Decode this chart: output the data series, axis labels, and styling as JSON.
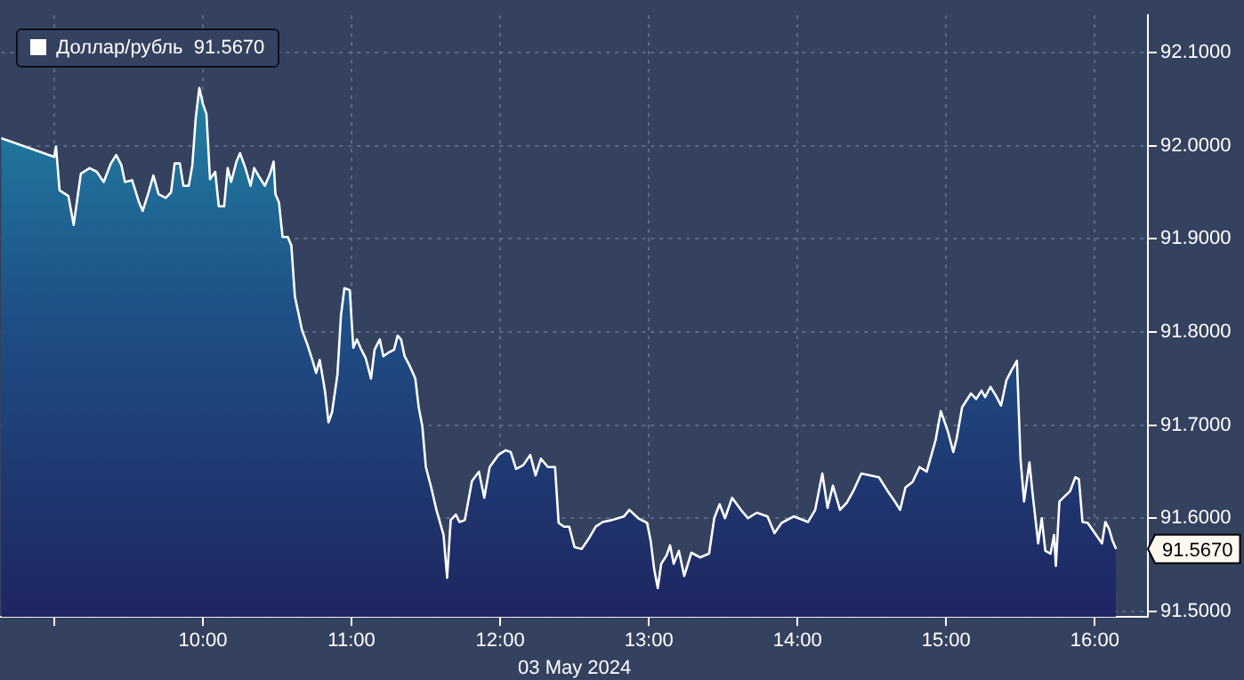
{
  "chart_data": {
    "type": "area",
    "xlabel": "03 May 2024",
    "x": [
      8.643,
      9.0,
      9.012,
      9.036,
      9.095,
      9.131,
      9.179,
      9.238,
      9.286,
      9.333,
      9.381,
      9.417,
      9.452,
      9.476,
      9.524,
      9.571,
      9.595,
      9.631,
      9.667,
      9.702,
      9.75,
      9.786,
      9.81,
      9.845,
      9.869,
      9.905,
      9.929,
      9.952,
      9.976,
      10.0,
      10.024,
      10.048,
      10.083,
      10.107,
      10.143,
      10.167,
      10.19,
      10.226,
      10.25,
      10.286,
      10.321,
      10.345,
      10.381,
      10.417,
      10.452,
      10.476,
      10.488,
      10.512,
      10.536,
      10.571,
      10.595,
      10.619,
      10.643,
      10.667,
      10.702,
      10.738,
      10.762,
      10.786,
      10.821,
      10.845,
      10.869,
      10.905,
      10.929,
      10.952,
      10.988,
      11.012,
      11.036,
      11.06,
      11.095,
      11.131,
      11.155,
      11.19,
      11.214,
      11.25,
      11.286,
      11.31,
      11.333,
      11.357,
      11.393,
      11.429,
      11.452,
      11.476,
      11.5,
      11.536,
      11.571,
      11.619,
      11.643,
      11.667,
      11.702,
      11.726,
      11.762,
      11.81,
      11.857,
      11.893,
      11.929,
      11.988,
      12.036,
      12.071,
      12.107,
      12.155,
      12.202,
      12.238,
      12.274,
      12.321,
      12.369,
      12.393,
      12.429,
      12.464,
      12.5,
      12.548,
      12.595,
      12.643,
      12.69,
      12.75,
      12.833,
      12.869,
      12.929,
      12.988,
      13.012,
      13.036,
      13.06,
      13.083,
      13.119,
      13.143,
      13.167,
      13.202,
      13.238,
      13.286,
      13.345,
      13.405,
      13.44,
      13.476,
      13.512,
      13.56,
      13.619,
      13.667,
      13.726,
      13.798,
      13.845,
      13.893,
      13.976,
      14.071,
      14.119,
      14.167,
      14.202,
      14.238,
      14.286,
      14.333,
      14.381,
      14.429,
      14.548,
      14.607,
      14.655,
      14.69,
      14.726,
      14.774,
      14.821,
      14.869,
      14.929,
      14.964,
      15.012,
      15.048,
      15.071,
      15.107,
      15.167,
      15.202,
      15.238,
      15.262,
      15.298,
      15.333,
      15.369,
      15.405,
      15.44,
      15.476,
      15.5,
      15.524,
      15.56,
      15.583,
      15.619,
      15.643,
      15.667,
      15.702,
      15.726,
      15.738,
      15.762,
      15.833,
      15.869,
      15.893,
      15.917,
      15.952,
      16.0,
      16.048,
      16.071,
      16.095,
      16.119,
      16.143
    ],
    "series": [
      {
        "name": "Доллар/рубль  91.5670",
        "color": "#ffffff",
        "values": [
          92.008,
          91.988,
          91.999,
          91.952,
          91.946,
          91.915,
          91.97,
          91.976,
          91.972,
          91.961,
          91.981,
          91.99,
          91.979,
          91.961,
          91.963,
          91.939,
          91.93,
          91.948,
          91.968,
          91.948,
          91.944,
          91.95,
          91.981,
          91.981,
          91.957,
          91.957,
          91.979,
          92.03,
          92.062,
          92.045,
          92.034,
          91.964,
          91.972,
          91.935,
          91.935,
          91.976,
          91.961,
          91.983,
          91.992,
          91.976,
          91.957,
          91.976,
          91.966,
          91.957,
          91.97,
          91.983,
          91.948,
          91.939,
          91.902,
          91.902,
          91.893,
          91.838,
          91.82,
          91.802,
          91.787,
          91.769,
          91.756,
          91.77,
          91.737,
          91.703,
          91.714,
          91.754,
          91.818,
          91.847,
          91.845,
          91.783,
          91.792,
          91.783,
          91.772,
          91.75,
          91.781,
          91.792,
          91.774,
          91.778,
          91.781,
          91.796,
          91.792,
          91.774,
          91.763,
          91.75,
          91.719,
          91.699,
          91.655,
          91.633,
          91.609,
          91.582,
          91.536,
          91.598,
          91.604,
          91.596,
          91.598,
          91.64,
          91.65,
          91.622,
          91.655,
          91.668,
          91.673,
          91.671,
          91.653,
          91.657,
          91.668,
          91.646,
          91.664,
          91.655,
          91.655,
          91.595,
          91.591,
          91.591,
          91.569,
          91.567,
          91.578,
          91.591,
          91.596,
          91.598,
          91.602,
          91.609,
          91.6,
          91.595,
          91.576,
          91.545,
          91.525,
          91.551,
          91.56,
          91.571,
          91.551,
          91.565,
          91.538,
          91.563,
          91.558,
          91.562,
          91.6,
          91.615,
          91.6,
          91.622,
          91.609,
          91.6,
          91.606,
          91.602,
          91.584,
          91.595,
          91.602,
          91.596,
          91.609,
          91.648,
          91.611,
          91.635,
          91.609,
          91.617,
          91.631,
          91.648,
          91.644,
          91.629,
          91.618,
          91.609,
          91.633,
          91.639,
          91.655,
          91.65,
          91.684,
          91.715,
          91.693,
          91.671,
          91.686,
          91.719,
          91.734,
          91.728,
          91.737,
          91.73,
          91.741,
          91.732,
          91.721,
          91.748,
          91.759,
          91.769,
          91.664,
          91.618,
          91.66,
          91.624,
          91.573,
          91.6,
          91.565,
          91.562,
          91.582,
          91.549,
          91.618,
          91.629,
          91.644,
          91.642,
          91.596,
          91.595,
          91.584,
          91.573,
          91.596,
          91.589,
          91.576,
          91.567
        ]
      }
    ],
    "xlim": [
      8.643,
      16.357
    ],
    "xticks": [
      {
        "value": 9,
        "label": null
      },
      {
        "value": 10,
        "label": "10:00"
      },
      {
        "value": 11,
        "label": "11:00"
      },
      {
        "value": 12,
        "label": "12:00"
      },
      {
        "value": 13,
        "label": "13:00"
      },
      {
        "value": 14,
        "label": "14:00"
      },
      {
        "value": 15,
        "label": "15:00"
      },
      {
        "value": 16,
        "label": "16:00"
      }
    ],
    "ylim": [
      91.494,
      92.14
    ],
    "yticks": [
      {
        "value": 91.5,
        "label": "91.5000"
      },
      {
        "value": 91.6,
        "label": "91.6000"
      },
      {
        "value": 91.7,
        "label": "91.7000"
      },
      {
        "value": 91.8,
        "label": "91.8000"
      },
      {
        "value": 91.9,
        "label": "91.9000"
      },
      {
        "value": 92.0,
        "label": "92.0000"
      },
      {
        "value": 92.1,
        "label": "92.1000"
      }
    ],
    "annotations": [
      "91.5670"
    ],
    "grid": true,
    "legend": "top left",
    "marker": "none",
    "line_style": "solid"
  }
}
